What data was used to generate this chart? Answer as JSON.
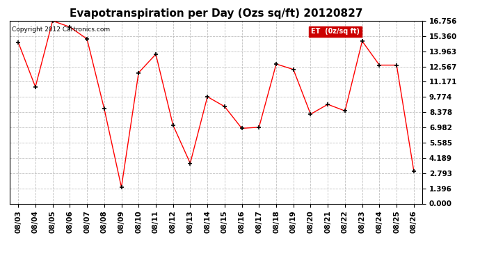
{
  "title": "Evapotranspiration per Day (Ozs sq/ft) 20120827",
  "copyright": "Copyright 2012 Cartronics.com",
  "legend_label": "ET  (0z/sq ft)",
  "dates": [
    "08/03",
    "08/04",
    "08/05",
    "08/06",
    "08/07",
    "08/08",
    "08/09",
    "08/10",
    "08/11",
    "08/12",
    "08/13",
    "08/14",
    "08/15",
    "08/16",
    "08/17",
    "08/18",
    "08/19",
    "08/20",
    "08/21",
    "08/22",
    "08/23",
    "08/24",
    "08/25",
    "08/26"
  ],
  "values": [
    14.8,
    10.7,
    16.756,
    16.2,
    15.1,
    8.7,
    1.5,
    12.0,
    13.7,
    7.2,
    3.7,
    9.8,
    8.9,
    6.9,
    7.0,
    12.8,
    12.3,
    8.2,
    9.1,
    8.5,
    14.9,
    12.7,
    12.7,
    3.0
  ],
  "line_color": "#ff0000",
  "marker_color": "#000000",
  "bg_color": "#ffffff",
  "grid_color": "#b0b0b0",
  "title_fontsize": 11,
  "yticks": [
    0.0,
    1.396,
    2.793,
    4.189,
    5.585,
    6.982,
    8.378,
    9.774,
    11.171,
    12.567,
    13.963,
    15.36,
    16.756
  ],
  "ylim": [
    0.0,
    16.756
  ],
  "legend_bg": "#cc0000",
  "legend_text_color": "#ffffff"
}
